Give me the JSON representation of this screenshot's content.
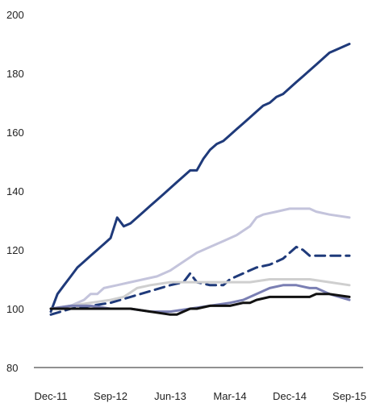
{
  "chart_data": {
    "type": "line",
    "title": "",
    "xlabel": "",
    "ylabel": "",
    "ylim": [
      80,
      200
    ],
    "yticks": [
      80,
      100,
      120,
      140,
      160,
      180,
      200
    ],
    "xlim": [
      0,
      45
    ],
    "xticks": [
      {
        "label": "Dec-11",
        "x": 0
      },
      {
        "label": "Sep-12",
        "x": 9
      },
      {
        "label": "Jun-13",
        "x": 18
      },
      {
        "label": "Mar-14",
        "x": 27
      },
      {
        "label": "Dec-14",
        "x": 36
      },
      {
        "label": "Sep-15",
        "x": 45
      }
    ],
    "grid": false,
    "legend": "none",
    "series": [
      {
        "color": "#1f3a7a",
        "dash": false,
        "x": [
          0,
          1,
          2,
          3,
          4,
          5,
          6,
          7,
          8,
          9,
          10,
          11,
          12,
          13,
          14,
          15,
          16,
          17,
          18,
          19,
          20,
          21,
          22,
          23,
          24,
          25,
          26,
          27,
          28,
          29,
          30,
          31,
          32,
          33,
          34,
          35,
          36,
          37,
          38,
          39,
          40,
          41,
          42,
          43,
          44,
          45
        ],
        "values": [
          99,
          105,
          108,
          111,
          114,
          116,
          118,
          120,
          122,
          124,
          131,
          128,
          129,
          131,
          133,
          135,
          137,
          139,
          141,
          143,
          145,
          147,
          147,
          151,
          154,
          156,
          157,
          159,
          161,
          163,
          165,
          167,
          169,
          170,
          172,
          173,
          175,
          177,
          179,
          181,
          183,
          185,
          187,
          188,
          189,
          190
        ]
      },
      {
        "color": "#c4c4dc",
        "dash": false,
        "x": [
          0,
          3,
          5,
          6,
          7,
          8,
          10,
          12,
          14,
          16,
          18,
          20,
          22,
          24,
          26,
          28,
          30,
          31,
          32,
          34,
          36,
          38,
          39,
          40,
          42,
          45
        ],
        "values": [
          100,
          101,
          103,
          105,
          105,
          107,
          108,
          109,
          110,
          111,
          113,
          116,
          119,
          121,
          123,
          125,
          128,
          131,
          132,
          133,
          134,
          134,
          134,
          133,
          132,
          131
        ]
      },
      {
        "color": "#1f3a7a",
        "dash": true,
        "x": [
          0,
          3,
          6,
          9,
          12,
          15,
          18,
          20,
          21,
          22,
          24,
          26,
          27,
          29,
          31,
          33,
          35,
          36,
          37,
          38,
          39,
          40,
          42,
          45
        ],
        "values": [
          98,
          100,
          101,
          102,
          104,
          106,
          108,
          109,
          112,
          109,
          108,
          108,
          110,
          112,
          114,
          115,
          117,
          119,
          121,
          120,
          118,
          118,
          118,
          118
        ]
      },
      {
        "color": "#cfcfcf",
        "dash": false,
        "x": [
          0,
          3,
          6,
          9,
          11,
          13,
          15,
          18,
          21,
          24,
          27,
          30,
          33,
          36,
          39,
          42,
          45
        ],
        "values": [
          100,
          101,
          102,
          103,
          104,
          107,
          108,
          109,
          109,
          109,
          109,
          109,
          110,
          110,
          110,
          109,
          108
        ]
      },
      {
        "color": "#7a7fb3",
        "dash": false,
        "x": [
          0,
          3,
          6,
          9,
          12,
          15,
          18,
          21,
          24,
          27,
          29,
          31,
          33,
          35,
          37,
          39,
          40,
          42,
          45
        ],
        "values": [
          100,
          101,
          101,
          100,
          100,
          99,
          99,
          100,
          101,
          102,
          103,
          105,
          107,
          108,
          108,
          107,
          107,
          105,
          103
        ]
      },
      {
        "color": "#111111",
        "dash": false,
        "x": [
          0,
          3,
          6,
          9,
          12,
          15,
          18,
          19,
          20,
          21,
          22,
          24,
          27,
          29,
          30,
          31,
          33,
          35,
          37,
          39,
          40,
          42,
          45
        ],
        "values": [
          100,
          100,
          100,
          100,
          100,
          99,
          98,
          98,
          99,
          100,
          100,
          101,
          101,
          102,
          102,
          103,
          104,
          104,
          104,
          104,
          105,
          105,
          104
        ]
      }
    ]
  }
}
